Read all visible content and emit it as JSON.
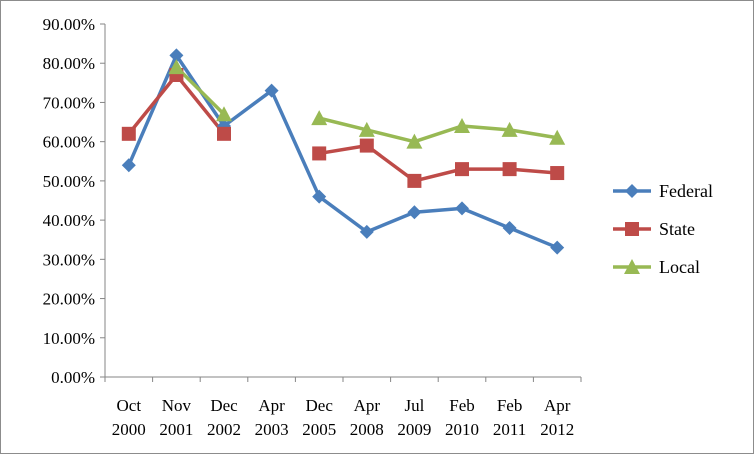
{
  "chart_data": {
    "type": "line",
    "title": "",
    "xlabel": "",
    "ylabel": "",
    "categories": [
      [
        "Oct",
        "2000"
      ],
      [
        "Nov",
        "2001"
      ],
      [
        "Dec",
        "2002"
      ],
      [
        "Apr",
        "2003"
      ],
      [
        "Dec",
        "2005"
      ],
      [
        "Apr",
        "2008"
      ],
      [
        "Jul",
        "2009"
      ],
      [
        "Feb",
        "2010"
      ],
      [
        "Feb",
        "2011"
      ],
      [
        "Apr",
        "2012"
      ]
    ],
    "ylim": [
      0,
      0.9
    ],
    "yticks": [
      {
        "value": 0.0,
        "label": "0.00%"
      },
      {
        "value": 0.1,
        "label": "10.00%"
      },
      {
        "value": 0.2,
        "label": "20.00%"
      },
      {
        "value": 0.3,
        "label": "30.00%"
      },
      {
        "value": 0.4,
        "label": "40.00%"
      },
      {
        "value": 0.5,
        "label": "50.00%"
      },
      {
        "value": 0.6,
        "label": "60.00%"
      },
      {
        "value": 0.7,
        "label": "70.00%"
      },
      {
        "value": 0.8,
        "label": "80.00%"
      },
      {
        "value": 0.9,
        "label": "90.00%"
      }
    ],
    "grid": false,
    "legend_position": "right",
    "series": [
      {
        "name": "Federal",
        "color": "#4a7ebb",
        "marker": "diamond",
        "values": [
          0.54,
          0.82,
          0.64,
          0.73,
          0.46,
          0.37,
          0.42,
          0.43,
          0.38,
          0.33
        ]
      },
      {
        "name": "State",
        "color": "#be4b48",
        "marker": "square",
        "values": [
          0.62,
          0.77,
          0.62,
          null,
          0.57,
          0.59,
          0.5,
          0.53,
          0.53,
          0.52
        ]
      },
      {
        "name": "Local",
        "color": "#98b954",
        "marker": "triangle",
        "values": [
          null,
          0.79,
          0.67,
          null,
          0.66,
          0.63,
          0.6,
          0.64,
          0.63,
          0.61
        ]
      }
    ]
  }
}
